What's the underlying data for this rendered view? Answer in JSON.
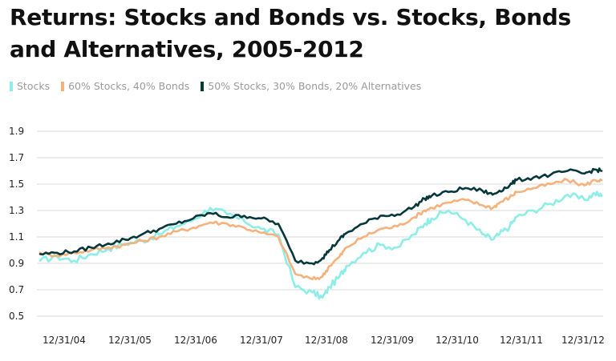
{
  "chart_data": {
    "type": "line",
    "title": "Returns: Stocks and Bonds vs. Stocks, Bonds and Alternatives, 2005-2012",
    "xlabel": "",
    "ylabel": "",
    "xticks": [
      "12/31/04",
      "12/31/05",
      "12/31/06",
      "12/31/07",
      "12/31/08",
      "12/31/09",
      "12/31/10",
      "12/31/11",
      "12/31/12"
    ],
    "yticks": [
      "1.9",
      "1.7",
      "1.5",
      "1.3",
      "1.1",
      "0.9",
      "0.7",
      "0.5"
    ],
    "ylim": [
      0.5,
      1.9
    ],
    "grid": "horizontal",
    "legend_position": "top-left",
    "x": [
      2004.75,
      2005.0,
      2005.25,
      2005.5,
      2005.75,
      2006.0,
      2006.25,
      2006.5,
      2006.75,
      2007.0,
      2007.25,
      2007.5,
      2007.75,
      2008.0,
      2008.25,
      2008.5,
      2008.75,
      2008.9,
      2009.0,
      2009.15,
      2009.25,
      2009.5,
      2009.75,
      2010.0,
      2010.25,
      2010.4,
      2010.5,
      2010.75,
      2011.0,
      2011.25,
      2011.4,
      2011.5,
      2011.65,
      2011.75,
      2012.0,
      2012.25,
      2012.5,
      2012.75,
      2012.9,
      2013.0
    ],
    "series": [
      {
        "name": "Stocks",
        "color": "#8ceee6",
        "values": [
          0.92,
          0.95,
          0.92,
          0.97,
          1.01,
          1.05,
          1.07,
          1.12,
          1.18,
          1.23,
          1.32,
          1.27,
          1.22,
          1.16,
          1.12,
          0.72,
          0.68,
          0.64,
          0.72,
          0.8,
          0.88,
          0.98,
          1.04,
          1.02,
          1.12,
          1.2,
          1.24,
          1.3,
          1.23,
          1.12,
          1.08,
          1.12,
          1.18,
          1.25,
          1.3,
          1.35,
          1.42,
          1.38,
          1.43,
          1.41
        ]
      },
      {
        "name": "60% Stocks, 40% Bonds",
        "color": "#f5b27d",
        "values": [
          0.98,
          0.96,
          0.98,
          1.0,
          1.02,
          1.04,
          1.07,
          1.1,
          1.14,
          1.17,
          1.21,
          1.2,
          1.17,
          1.13,
          1.1,
          0.82,
          0.78,
          0.8,
          0.88,
          0.95,
          1.02,
          1.1,
          1.16,
          1.18,
          1.25,
          1.3,
          1.32,
          1.36,
          1.38,
          1.34,
          1.32,
          1.36,
          1.4,
          1.44,
          1.47,
          1.5,
          1.53,
          1.49,
          1.53,
          1.53
        ]
      },
      {
        "name": "50% Stocks, 30% Bonds, 20% Alternatives",
        "color": "#06373b",
        "values": [
          0.97,
          0.98,
          0.99,
          1.02,
          1.05,
          1.08,
          1.12,
          1.16,
          1.2,
          1.24,
          1.28,
          1.25,
          1.26,
          1.24,
          1.2,
          0.92,
          0.9,
          0.94,
          1.0,
          1.08,
          1.13,
          1.2,
          1.26,
          1.27,
          1.33,
          1.39,
          1.41,
          1.44,
          1.47,
          1.45,
          1.42,
          1.45,
          1.49,
          1.53,
          1.55,
          1.57,
          1.6,
          1.58,
          1.61,
          1.6
        ]
      }
    ]
  }
}
